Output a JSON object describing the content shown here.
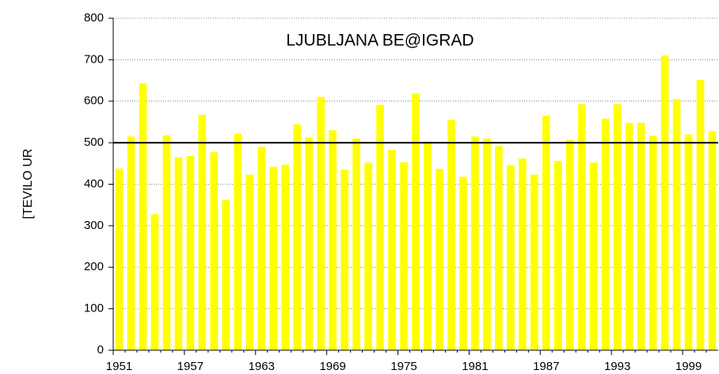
{
  "chart_data": {
    "type": "bar",
    "title": "LJUBLJANA BE@IGRAD",
    "y_label": "[TEVILO UR",
    "categories": [
      "1951",
      null,
      null,
      null,
      null,
      null,
      "1957",
      null,
      null,
      null,
      null,
      null,
      "1963",
      null,
      null,
      null,
      null,
      null,
      "1969",
      null,
      null,
      null,
      null,
      null,
      "1975",
      null,
      null,
      null,
      null,
      null,
      "1981",
      null,
      null,
      null,
      null,
      null,
      "1987",
      null,
      null,
      null,
      null,
      null,
      "1993",
      null,
      null,
      null,
      null,
      null,
      "1999",
      null,
      null
    ],
    "values": [
      438,
      515,
      643,
      328,
      518,
      465,
      468,
      567,
      477,
      362,
      522,
      423,
      490,
      442,
      447,
      544,
      513,
      610,
      530,
      435,
      510,
      452,
      591,
      483,
      453,
      618,
      503,
      437,
      555,
      418,
      515,
      510,
      492,
      446,
      462,
      423,
      565,
      456,
      507,
      593,
      452,
      558,
      593,
      548,
      548,
      517,
      710,
      605,
      520,
      651,
      528
    ],
    "color": "#ffff00",
    "reference_line": 500,
    "ylim": [
      0,
      800
    ],
    "yticks": [
      0,
      100,
      200,
      300,
      400,
      500,
      600,
      700,
      800
    ],
    "grid": true
  }
}
